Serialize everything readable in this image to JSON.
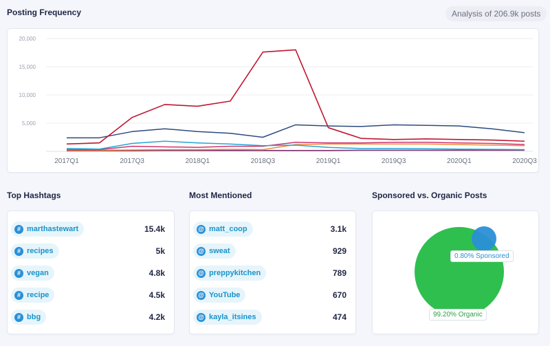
{
  "header": {
    "posting_title": "Posting Frequency",
    "analysis_text": "Analysis of 206.9k posts"
  },
  "sections": {
    "hashtags_title": "Top Hashtags",
    "mentions_title": "Most Mentioned",
    "sponsored_title": "Sponsored vs. Organic Posts"
  },
  "hashtags": [
    {
      "tag": "marthastewart",
      "count": "15.4k"
    },
    {
      "tag": "recipes",
      "count": "5k"
    },
    {
      "tag": "vegan",
      "count": "4.8k"
    },
    {
      "tag": "recipe",
      "count": "4.5k"
    },
    {
      "tag": "bbg",
      "count": "4.2k"
    }
  ],
  "mentions": [
    {
      "handle": "matt_coop",
      "count": "3.1k"
    },
    {
      "handle": "sweat",
      "count": "929"
    },
    {
      "handle": "preppykitchen",
      "count": "789"
    },
    {
      "handle": "YouTube",
      "count": "670"
    },
    {
      "handle": "kayla_itsines",
      "count": "474"
    }
  ],
  "icons": {
    "hashtag": "#",
    "mention": "@"
  },
  "donut": {
    "sponsored_label": "0.80% Sponsored",
    "organic_label": "99.20% Organic",
    "sponsored_pct": 0.8,
    "organic_pct": 99.2,
    "sponsored_color": "#2a8fd6",
    "organic_color": "#2fbf4f"
  },
  "chart_data": {
    "type": "line",
    "x": [
      "2017Q1",
      "2017Q2",
      "2017Q3",
      "2017Q4",
      "2018Q1",
      "2018Q2",
      "2018Q3",
      "2018Q4",
      "2019Q1",
      "2019Q2",
      "2019Q3",
      "2019Q4",
      "2020Q1",
      "2020Q2",
      "2020Q3"
    ],
    "x_tick_labels": [
      "2017Q1",
      "2017Q3",
      "2018Q1",
      "2018Q3",
      "2019Q1",
      "2019Q3",
      "2020Q1",
      "2020Q3"
    ],
    "y_tick_labels": [
      "5,000",
      "10,000",
      "15,000",
      "20,000"
    ],
    "ylim": [
      0,
      20000
    ],
    "grid": true,
    "series": [
      {
        "color": "#c0152f",
        "values": [
          1300,
          1500,
          6000,
          8300,
          8000,
          8900,
          17600,
          18000,
          4200,
          2300,
          2100,
          2200,
          2100,
          2000,
          1800
        ]
      },
      {
        "color": "#2b4a7e",
        "values": [
          2400,
          2400,
          3500,
          4000,
          3500,
          3200,
          2500,
          4700,
          4500,
          4400,
          4700,
          4600,
          4500,
          4000,
          3300
        ]
      },
      {
        "color": "#24a5d4",
        "values": [
          500,
          400,
          1400,
          1800,
          1500,
          1300,
          1000,
          1100,
          700,
          500,
          500,
          450,
          400,
          350,
          300
        ]
      },
      {
        "color": "#d0336c",
        "values": [
          300,
          300,
          900,
          800,
          700,
          900,
          900,
          1600,
          1500,
          1500,
          1600,
          1600,
          1500,
          1400,
          1200
        ]
      },
      {
        "color": "#f08a3c",
        "values": [
          200,
          200,
          250,
          300,
          300,
          350,
          300,
          1200,
          1300,
          1300,
          1300,
          1300,
          1200,
          1100,
          1000
        ]
      },
      {
        "color": "#7a2a6a",
        "values": [
          100,
          100,
          100,
          150,
          150,
          150,
          150,
          150,
          150,
          200,
          200,
          200,
          200,
          200,
          200
        ]
      }
    ]
  }
}
